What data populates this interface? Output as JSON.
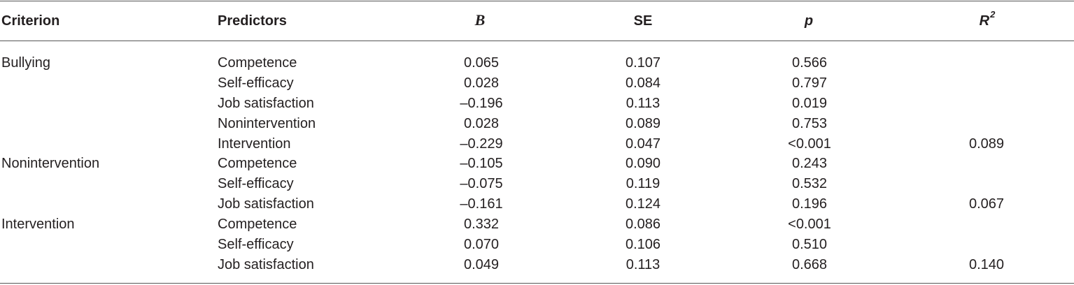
{
  "table": {
    "headers": {
      "criterion": "Criterion",
      "predictors": "Predictors",
      "b": "B",
      "se": "SE",
      "p": "p",
      "r2_main": "R",
      "r2_sup": "2"
    },
    "rows": [
      {
        "criterion": "Bullying",
        "predictor": "Competence",
        "b": "0.065",
        "se": "0.107",
        "p": "0.566",
        "r2": ""
      },
      {
        "criterion": "",
        "predictor": "Self-efficacy",
        "b": "0.028",
        "se": "0.084",
        "p": "0.797",
        "r2": ""
      },
      {
        "criterion": "",
        "predictor": "Job satisfaction",
        "b": "–0.196",
        "se": "0.113",
        "p": "0.019",
        "r2": ""
      },
      {
        "criterion": "",
        "predictor": "Nonintervention",
        "b": "0.028",
        "se": "0.089",
        "p": "0.753",
        "r2": ""
      },
      {
        "criterion": "",
        "predictor": "Intervention",
        "b": "–0.229",
        "se": "0.047",
        "p": "<0.001",
        "r2": "0.089"
      },
      {
        "criterion": "Nonintervention",
        "predictor": "Competence",
        "b": "–0.105",
        "se": "0.090",
        "p": "0.243",
        "r2": ""
      },
      {
        "criterion": "",
        "predictor": "Self-efficacy",
        "b": "–0.075",
        "se": "0.119",
        "p": "0.532",
        "r2": ""
      },
      {
        "criterion": "",
        "predictor": "Job satisfaction",
        "b": "–0.161",
        "se": "0.124",
        "p": "0.196",
        "r2": "0.067"
      },
      {
        "criterion": "Intervention",
        "predictor": "Competence",
        "b": "0.332",
        "se": "0.086",
        "p": "<0.001",
        "r2": ""
      },
      {
        "criterion": "",
        "predictor": "Self-efficacy",
        "b": "0.070",
        "se": "0.106",
        "p": "0.510",
        "r2": ""
      },
      {
        "criterion": "",
        "predictor": "Job satisfaction",
        "b": "0.049",
        "se": "0.113",
        "p": "0.668",
        "r2": "0.140"
      }
    ]
  }
}
